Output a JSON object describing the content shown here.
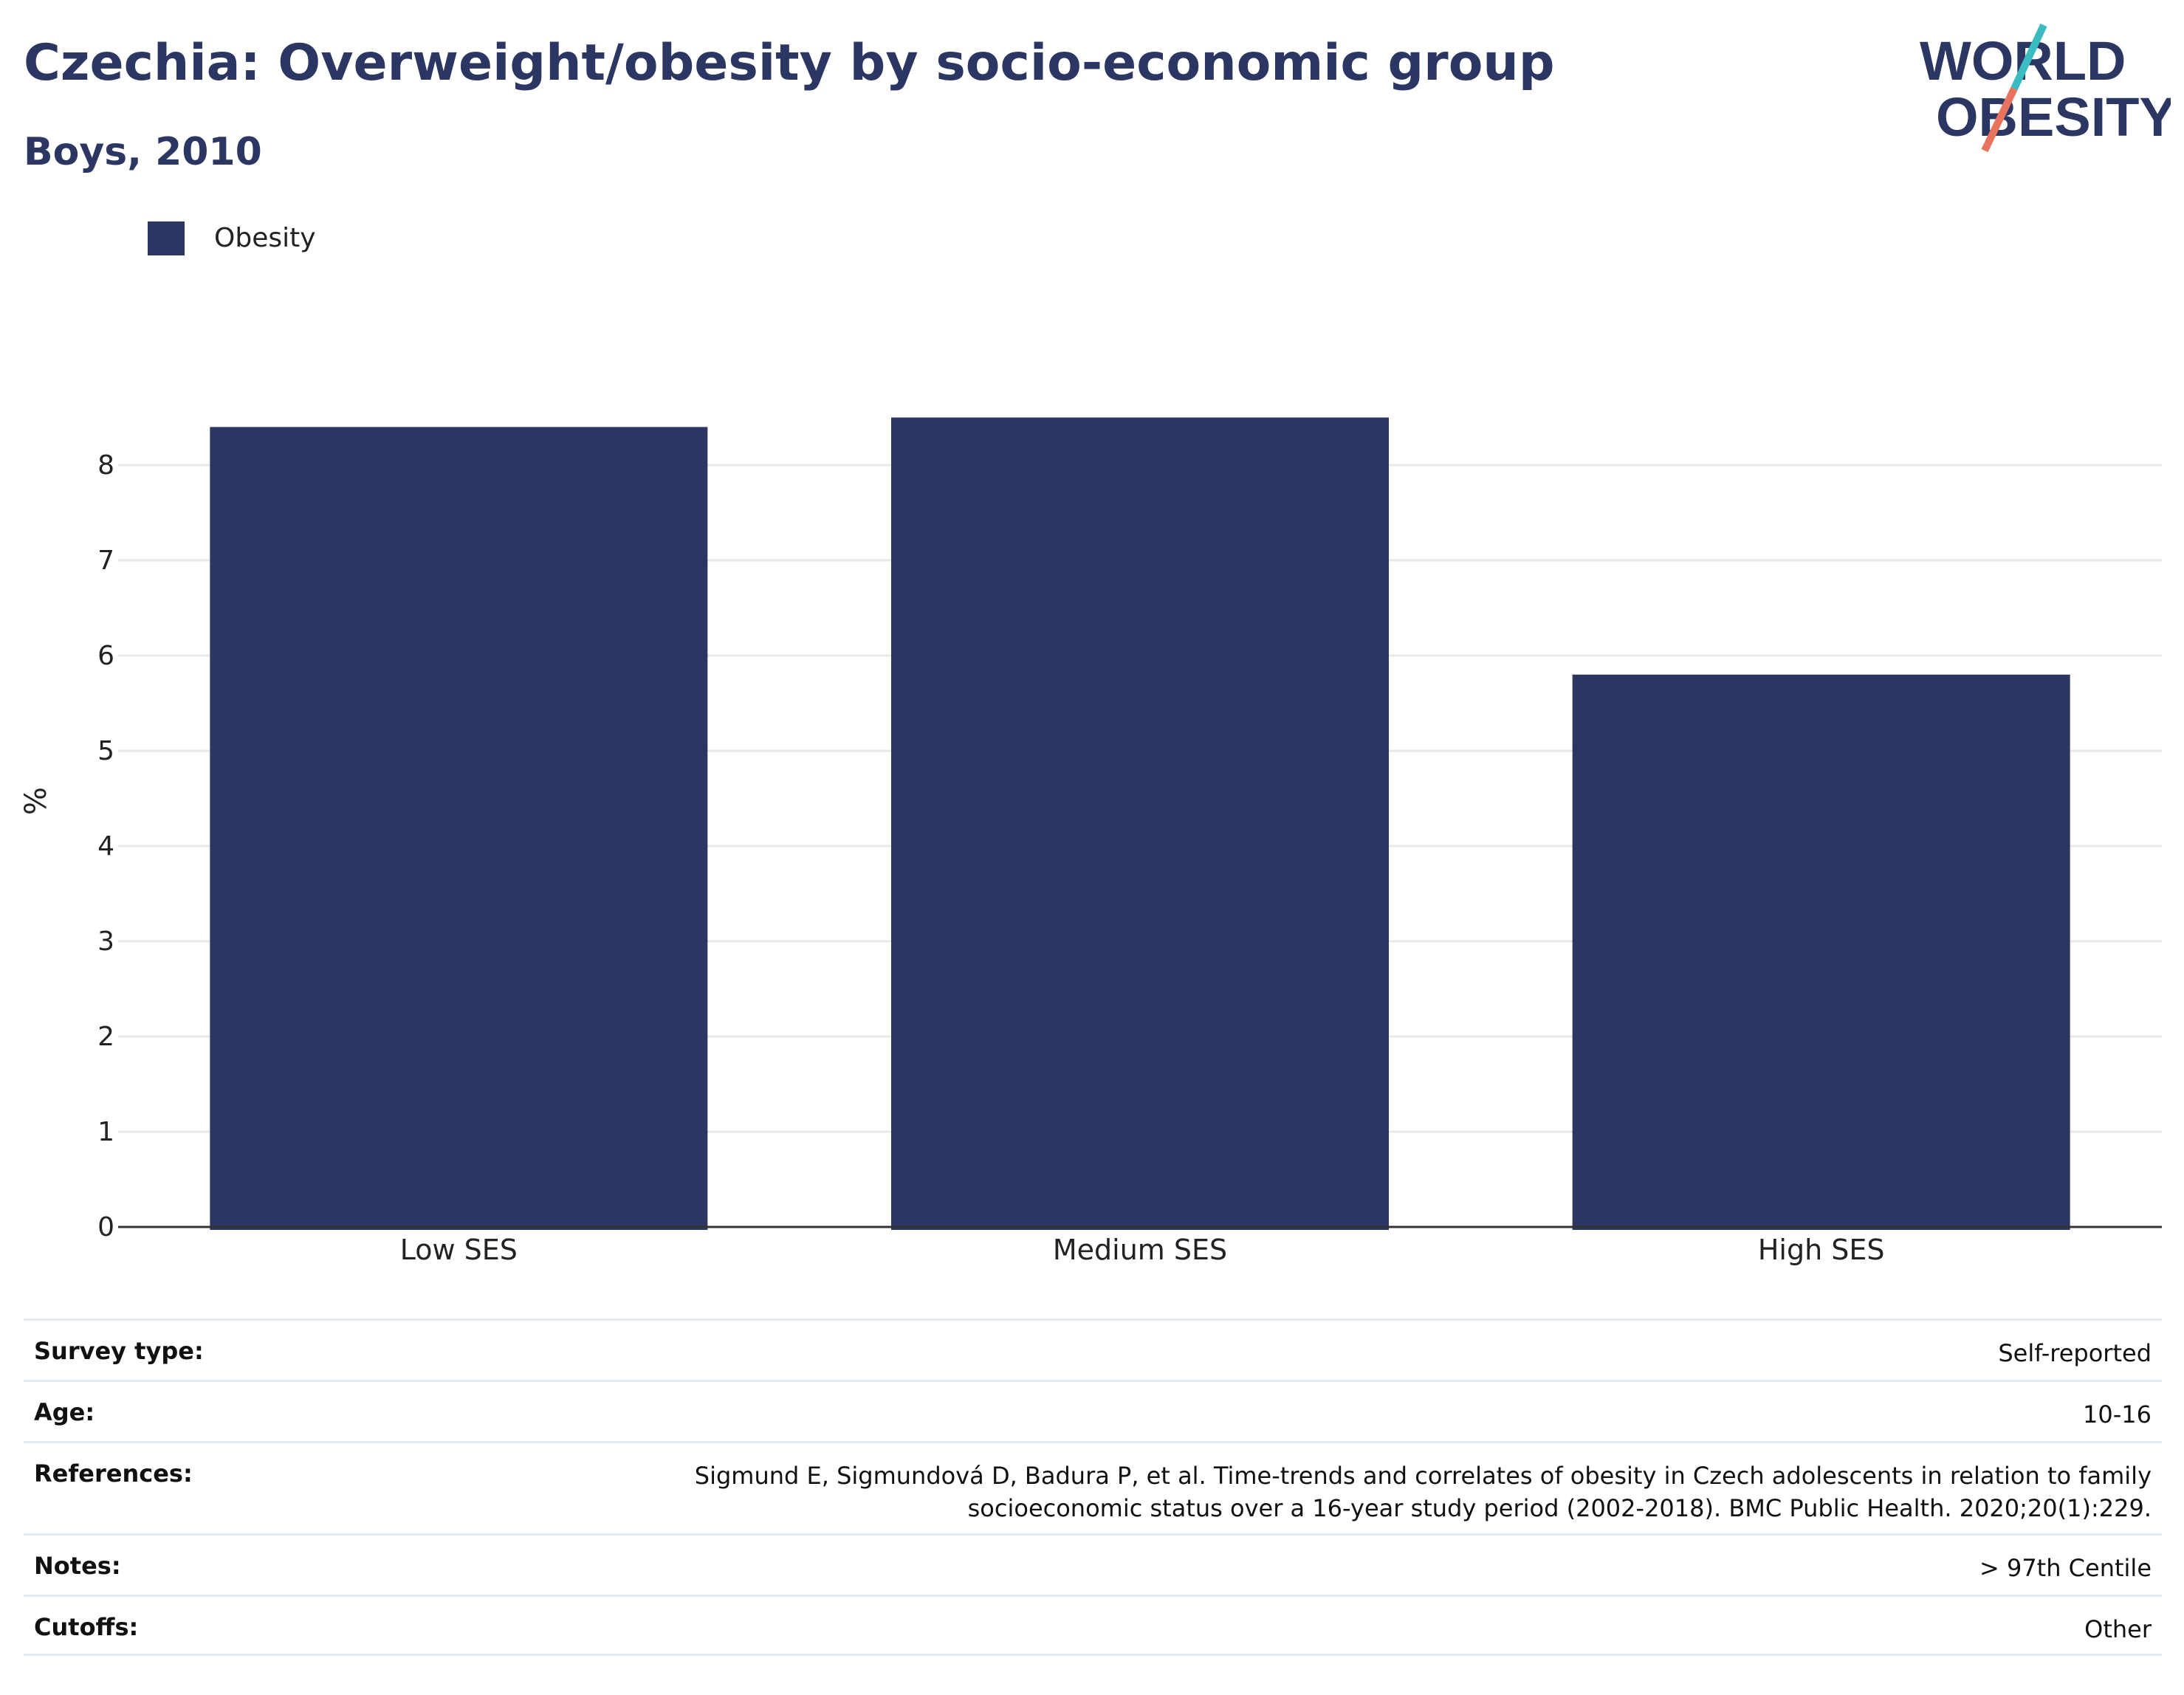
{
  "header": {
    "title": "Czechia: Overweight/obesity by socio-economic group",
    "subtitle": "Boys, 2010",
    "logo_line1": "WORLD",
    "logo_line2": "OBESITY"
  },
  "colors": {
    "bar": "#2b3762",
    "text": "#2b3762",
    "grid": "#e8e8e8",
    "logo_teal": "#3bbcc2",
    "logo_coral": "#e8735e"
  },
  "chart_data": {
    "type": "bar",
    "categories": [
      "Low SES",
      "Medium SES",
      "High SES"
    ],
    "series": [
      {
        "name": "Obesity",
        "values": [
          8.4,
          8.5,
          5.8
        ]
      }
    ],
    "ylabel": "%",
    "xlabel": "",
    "yticks": [
      0,
      1,
      2,
      3,
      4,
      5,
      6,
      7,
      8
    ],
    "ylim": [
      0,
      9
    ],
    "grid": true,
    "legend_position": "top-left"
  },
  "meta": [
    {
      "key": "Survey type:",
      "value": "Self-reported"
    },
    {
      "key": "Age:",
      "value": "10-16"
    },
    {
      "key": "References:",
      "value": "Sigmund E, Sigmundová D, Badura P, et al. Time-trends and correlates of obesity in Czech adolescents in relation to family socioeconomic status over a 16-year study period (2002-2018). BMC Public Health. 2020;20(1):229."
    },
    {
      "key": "Notes:",
      "value": "> 97th Centile"
    },
    {
      "key": "Cutoffs:",
      "value": "Other"
    }
  ]
}
